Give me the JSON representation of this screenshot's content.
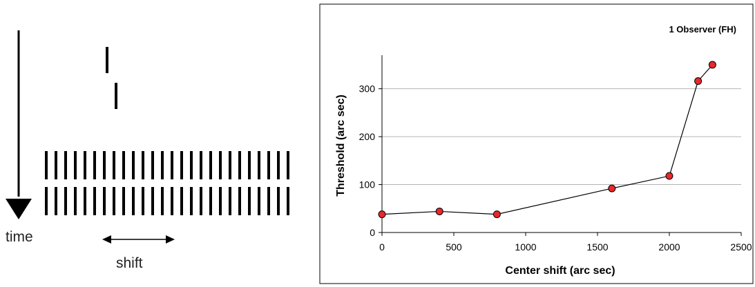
{
  "schematic": {
    "time_label": "time",
    "shift_label": "shift",
    "row_bar_count": 26
  },
  "chart_data": {
    "type": "line",
    "title": "1 Observer (FH)",
    "xlabel": "Center shift (arc sec)",
    "ylabel": "Threshold (arc sec)",
    "xlim": [
      0,
      2500
    ],
    "ylim": [
      0,
      370
    ],
    "x_ticks": [
      0,
      500,
      1000,
      1500,
      2000,
      2500
    ],
    "y_ticks": [
      0,
      100,
      200,
      300
    ],
    "grid": "horizontal",
    "series": [
      {
        "x": [
          0,
          400,
          800,
          1600,
          2000,
          2200,
          2300
        ],
        "y": [
          38,
          44,
          38,
          92,
          118,
          316,
          350
        ],
        "marker_color": "#e8282b",
        "line_color": "#000000"
      }
    ]
  }
}
